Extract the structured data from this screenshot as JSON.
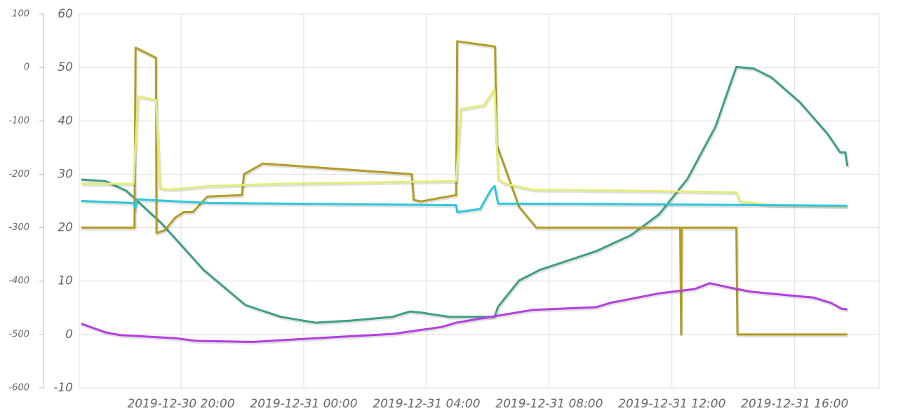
{
  "chart_data": {
    "type": "line",
    "xlim": [
      "2019-12-30 16:41",
      "2019-12-31 18:45"
    ],
    "xticks": [
      "2019-12-30 20:00",
      "2019-12-31 00:00",
      "2019-12-31 04:00",
      "2019-12-31 08:00",
      "2019-12-31 12:00",
      "2019-12-31 16:00"
    ],
    "ylim": [
      -10,
      60
    ],
    "yticks": [
      -10,
      0,
      10,
      20,
      30,
      40,
      50,
      60
    ],
    "y2lim": [
      -600,
      100
    ],
    "y2ticks": [
      -600,
      -500,
      -400,
      -300,
      -200,
      -100,
      0,
      100
    ],
    "grid": true,
    "series": [
      {
        "color": "#3f9e86",
        "x": [
          "2019-12-30 16:45",
          "2019-12-30 17:32",
          "2019-12-30 18:13",
          "2019-12-30 19:22",
          "2019-12-30 20:44",
          "2019-12-30 22:06",
          "2019-12-30 23:15",
          "2019-12-31 00:23",
          "2019-12-31 01:32",
          "2019-12-31 02:54",
          "2019-12-31 03:28",
          "2019-12-31 03:49",
          "2019-12-31 04:44",
          "2019-12-31 06:13",
          "2019-12-31 06:20",
          "2019-12-31 07:01",
          "2019-12-31 07:42",
          "2019-12-31 08:23",
          "2019-12-31 09:32",
          "2019-12-31 10:40",
          "2019-12-31 11:35",
          "2019-12-31 12:30",
          "2019-12-31 13:25",
          "2019-12-31 14:06",
          "2019-12-31 14:40",
          "2019-12-31 15:15",
          "2019-12-31 16:10",
          "2019-12-31 17:04",
          "2019-12-31 17:29",
          "2019-12-31 17:39",
          "2019-12-31 17:43"
        ],
        "values": [
          29.0,
          28.7,
          26.9,
          20.8,
          12.1,
          5.5,
          3.3,
          2.2,
          2.6,
          3.3,
          4.3,
          4.1,
          3.3,
          3.3,
          5.2,
          10.1,
          12.1,
          13.4,
          15.6,
          18.6,
          22.5,
          29.1,
          38.9,
          50.1,
          49.8,
          48.1,
          43.5,
          37.6,
          34.1,
          34.1,
          31.5
        ]
      },
      {
        "color": "#b39c24",
        "x": [
          "2019-12-30 16:45",
          "2019-12-30 18:29",
          "2019-12-30 18:31",
          "2019-12-30 19:11",
          "2019-12-30 19:12",
          "2019-12-30 19:28",
          "2019-12-30 19:49",
          "2019-12-30 20:05",
          "2019-12-30 20:23",
          "2019-12-30 20:51",
          "2019-12-30 21:59",
          "2019-12-30 22:03",
          "2019-12-30 22:40",
          "2019-12-31 03:31",
          "2019-12-31 03:35",
          "2019-12-31 03:49",
          "2019-12-31 04:58",
          "2019-12-31 05:00",
          "2019-12-31 06:14",
          "2019-12-31 06:17",
          "2019-12-31 06:34",
          "2019-12-31 07:01",
          "2019-12-31 07:35",
          "2019-12-31 12:16",
          "2019-12-31 12:18",
          "2019-12-31 12:19",
          "2019-12-31 14:06",
          "2019-12-31 14:08",
          "2019-12-31 17:43"
        ],
        "values": [
          20,
          20,
          53.7,
          51.8,
          19,
          19.5,
          21.9,
          22.9,
          22.9,
          25.8,
          26.1,
          30,
          32,
          30,
          25.2,
          24.9,
          26.1,
          54.9,
          53.9,
          35.6,
          31.1,
          23.9,
          20,
          20,
          0,
          20,
          20,
          0,
          0
        ]
      },
      {
        "color": "#e4ec78",
        "x": [
          "2019-12-30 16:45",
          "2019-12-30 18:27",
          "2019-12-30 18:36",
          "2019-12-30 19:11",
          "2019-12-30 19:19",
          "2019-12-30 19:35",
          "2019-12-30 20:58",
          "2019-12-30 23:15",
          "2019-12-31 01:32",
          "2019-12-31 04:58",
          "2019-12-31 05:07",
          "2019-12-31 05:52",
          "2019-12-31 06:13",
          "2019-12-31 06:20",
          "2019-12-31 06:34",
          "2019-12-31 07:28",
          "2019-12-31 10:40",
          "2019-12-31 14:06",
          "2019-12-31 14:13",
          "2019-12-31 15:15",
          "2019-12-31 17:43"
        ],
        "values": [
          28.2,
          28.2,
          44.6,
          43.9,
          27.4,
          27.1,
          27.8,
          28.2,
          28.4,
          28.7,
          42.2,
          42.9,
          45.9,
          29.1,
          28.2,
          27.1,
          26.9,
          26.6,
          24.9,
          24.2,
          24.0
        ]
      },
      {
        "color": "#2fc6dc",
        "x": [
          "2019-12-30 16:45",
          "2019-12-30 18:27",
          "2019-12-30 18:31",
          "2019-12-30 18:35",
          "2019-12-30 20:58",
          "2019-12-31 01:32",
          "2019-12-31 04:58",
          "2019-12-31 05:00",
          "2019-12-31 05:45",
          "2019-12-31 06:06",
          "2019-12-31 06:13",
          "2019-12-31 06:20",
          "2019-12-31 10:40",
          "2019-12-31 17:43"
        ],
        "values": [
          25.0,
          24.6,
          23.7,
          25.3,
          24.6,
          24.4,
          24.2,
          22.9,
          23.5,
          27.1,
          27.8,
          24.5,
          24.4,
          24.1
        ]
      },
      {
        "color": "#b43ee0",
        "x": [
          "2019-12-30 16:45",
          "2019-12-30 17:32",
          "2019-12-30 17:59",
          "2019-12-30 19:49",
          "2019-12-30 20:30",
          "2019-12-30 22:20",
          "2019-12-31 00:23",
          "2019-12-31 02:54",
          "2019-12-31 04:30",
          "2019-12-31 04:58",
          "2019-12-31 06:06",
          "2019-12-31 07:28",
          "2019-12-31 09:32",
          "2019-12-31 09:59",
          "2019-12-31 11:35",
          "2019-12-31 12:44",
          "2019-12-31 13:14",
          "2019-12-31 13:52",
          "2019-12-31 14:34",
          "2019-12-31 16:37",
          "2019-12-31 17:11",
          "2019-12-31 17:32",
          "2019-12-31 17:43"
        ],
        "values": [
          2.0,
          0.4,
          -0.1,
          -0.7,
          -1.2,
          -1.4,
          -0.7,
          0.1,
          1.4,
          2.2,
          3.3,
          4.6,
          5.1,
          5.9,
          7.7,
          8.5,
          9.6,
          8.8,
          8.0,
          6.9,
          5.9,
          4.8,
          4.7
        ]
      }
    ]
  }
}
